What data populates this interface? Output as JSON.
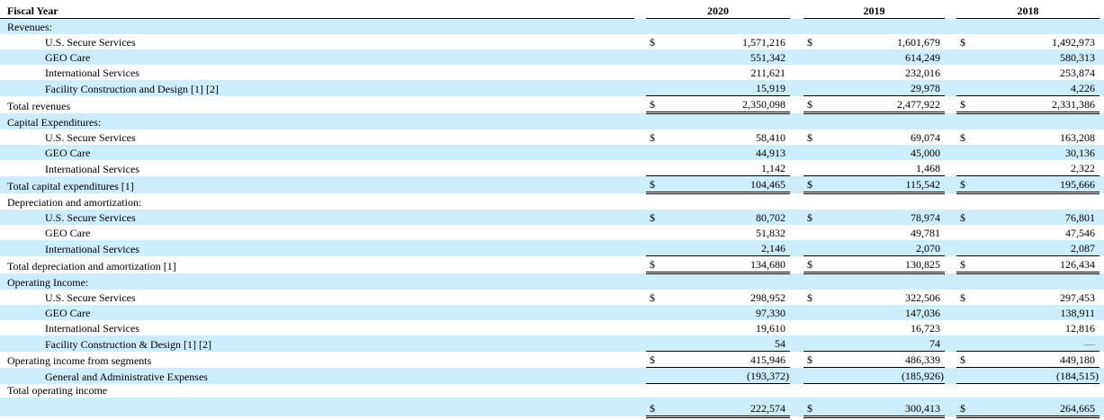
{
  "table": {
    "shade_color": "#cceeff",
    "header": {
      "fiscal_year_label": "Fiscal Year",
      "years": [
        "2020",
        "2019",
        "2018"
      ]
    },
    "rows": [
      {
        "label": "Revenues:",
        "type": "section",
        "shaded": true
      },
      {
        "label": "U.S. Secure Services",
        "type": "item",
        "indent": true,
        "dollar": true,
        "values": [
          "1,571,216",
          "1,601,679",
          "1,492,973"
        ]
      },
      {
        "label": "GEO Care",
        "type": "item",
        "indent": true,
        "shaded": true,
        "values": [
          "551,342",
          "614,249",
          "580,313"
        ]
      },
      {
        "label": "International Services",
        "type": "item",
        "indent": true,
        "values": [
          "211,621",
          "232,016",
          "253,874"
        ]
      },
      {
        "label": "Facility Construction and Design [1] [2]",
        "type": "item",
        "indent": true,
        "shaded": true,
        "underline": "single",
        "values": [
          "15,919",
          "29,978",
          "4,226"
        ]
      },
      {
        "label": "Total revenues",
        "type": "total",
        "dollar": true,
        "underline": "double",
        "values": [
          "2,350,098",
          "2,477,922",
          "2,331,386"
        ]
      },
      {
        "label": "Capital Expenditures:",
        "type": "section",
        "shaded": true
      },
      {
        "label": "U.S. Secure Services",
        "type": "item",
        "indent": true,
        "dollar": true,
        "values": [
          "58,410",
          "69,074",
          "163,208"
        ]
      },
      {
        "label": "GEO Care",
        "type": "item",
        "indent": true,
        "shaded": true,
        "values": [
          "44,913",
          "45,000",
          "30,136"
        ]
      },
      {
        "label": "International Services",
        "type": "item",
        "indent": true,
        "underline": "single",
        "values": [
          "1,142",
          "1,468",
          "2,322"
        ]
      },
      {
        "label": "Total capital expenditures [1]",
        "type": "total",
        "shaded": true,
        "dollar": true,
        "underline": "double",
        "values": [
          "104,465",
          "115,542",
          "195,666"
        ]
      },
      {
        "label": "Depreciation and amortization:",
        "type": "section"
      },
      {
        "label": "U.S. Secure Services",
        "type": "item",
        "indent": true,
        "shaded": true,
        "dollar": true,
        "values": [
          "80,702",
          "78,974",
          "76,801"
        ]
      },
      {
        "label": "GEO Care",
        "type": "item",
        "indent": true,
        "values": [
          "51,832",
          "49,781",
          "47,546"
        ]
      },
      {
        "label": "International Services",
        "type": "item",
        "indent": true,
        "shaded": true,
        "underline": "single",
        "values": [
          "2,146",
          "2,070",
          "2,087"
        ]
      },
      {
        "label": "Total depreciation and amortization [1]",
        "type": "total",
        "dollar": true,
        "underline": "double",
        "values": [
          "134,680",
          "130,825",
          "126,434"
        ]
      },
      {
        "label": "Operating Income:",
        "type": "section",
        "shaded": true
      },
      {
        "label": "U.S. Secure Services",
        "type": "item",
        "indent": true,
        "dollar": true,
        "values": [
          "298,952",
          "322,506",
          "297,453"
        ]
      },
      {
        "label": "GEO Care",
        "type": "item",
        "indent": true,
        "shaded": true,
        "values": [
          "97,330",
          "147,036",
          "138,911"
        ]
      },
      {
        "label": "International Services",
        "type": "item",
        "indent": true,
        "values": [
          "19,610",
          "16,723",
          "12,816"
        ]
      },
      {
        "label": "Facility Construction & Design [1] [2]",
        "type": "item",
        "indent": true,
        "shaded": true,
        "underline": "single",
        "values": [
          "54",
          "74",
          "—"
        ]
      },
      {
        "label": "Operating income from segments",
        "type": "total",
        "dollar": true,
        "underline": "single",
        "values": [
          "415,946",
          "486,339",
          "449,180"
        ]
      },
      {
        "label": "General and Administrative Expenses",
        "type": "item",
        "indent": true,
        "shaded": true,
        "underline": "single",
        "values": [
          "(193,372 )",
          "(185,926 )",
          "(184,515 )"
        ]
      },
      {
        "label": "Total operating income",
        "type": "label-only"
      },
      {
        "label": "",
        "type": "values-only",
        "shaded": true,
        "dollar": true,
        "underline": "double",
        "values": [
          "222,574",
          "300,413",
          "264,665"
        ]
      }
    ]
  }
}
